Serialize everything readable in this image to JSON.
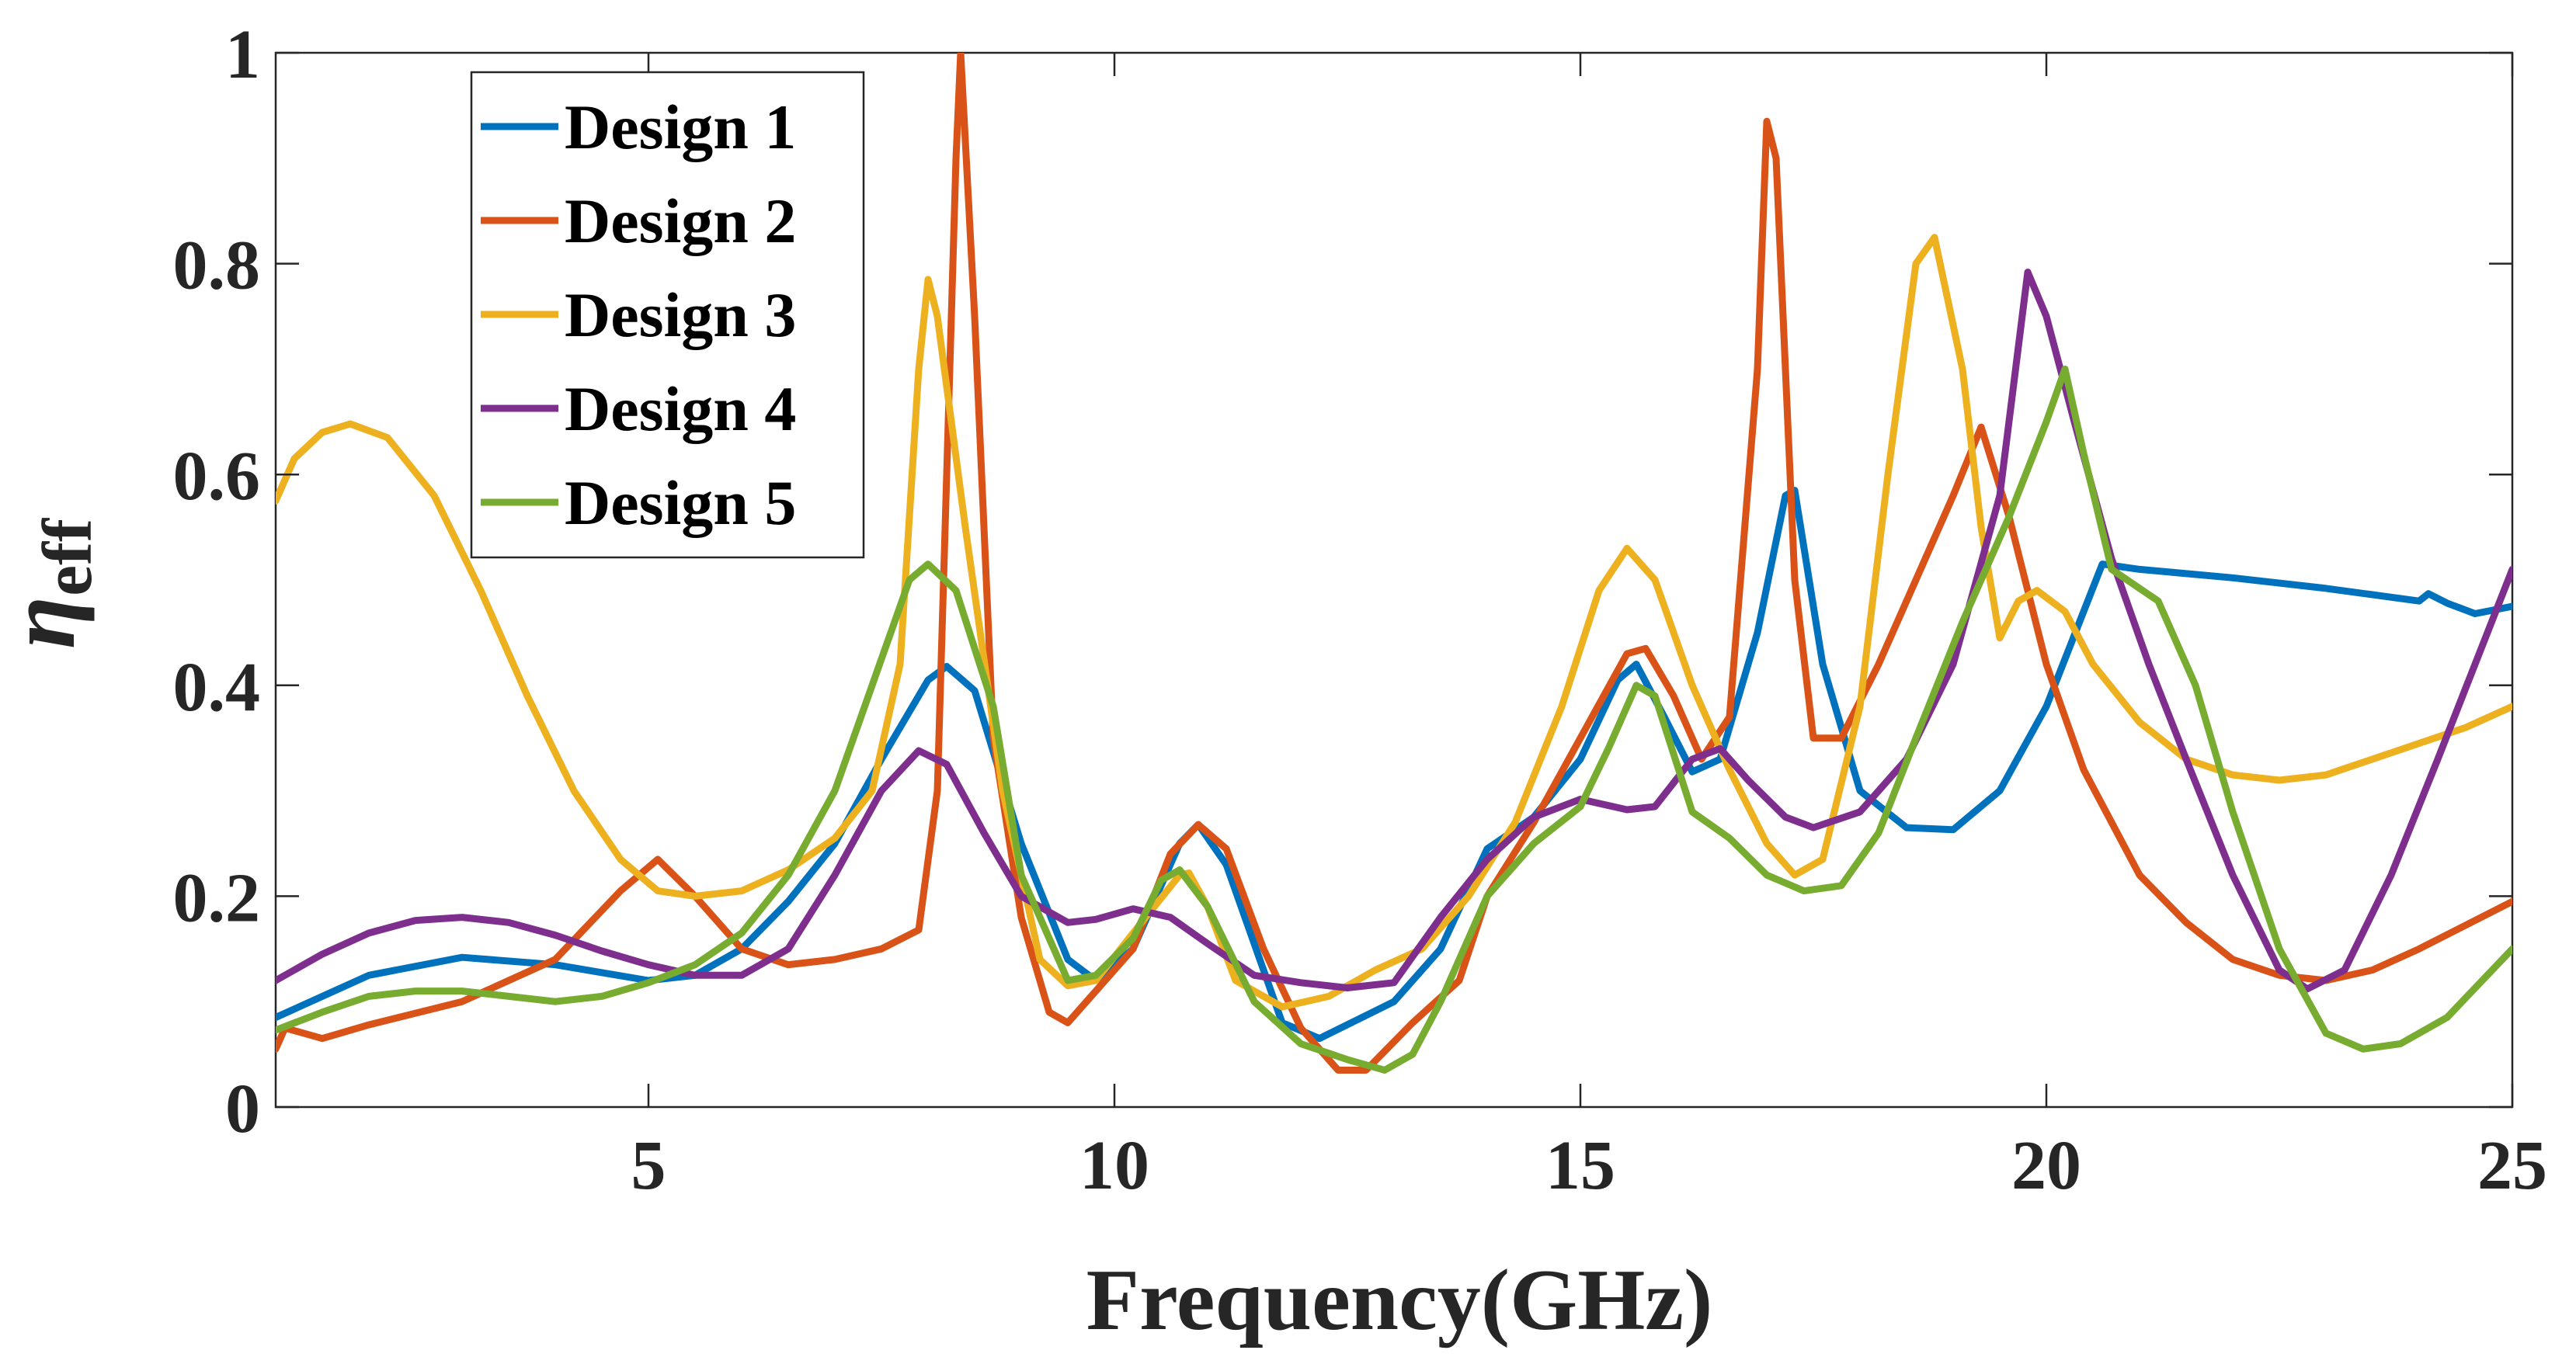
{
  "chart_data": {
    "type": "line",
    "title": "",
    "xlabel": "Frequency(GHz)",
    "ylabel": "η",
    "ylabel_subscript": "eff",
    "xlim": [
      1,
      25
    ],
    "ylim": [
      0,
      1
    ],
    "xticks": [
      5,
      10,
      15,
      20,
      25
    ],
    "xtick_labels": [
      "5",
      "10",
      "15",
      "20",
      "25"
    ],
    "yticks": [
      0,
      0.2,
      0.4,
      0.6,
      0.8,
      1
    ],
    "ytick_labels": [
      "0",
      "0.2",
      "0.4",
      "0.6",
      "0.8",
      "1"
    ],
    "grid": false,
    "legend_position": "top-left",
    "series": [
      {
        "name": "Design 1",
        "color": "#0072BD",
        "points": [
          [
            1,
            0.085
          ],
          [
            2,
            0.125
          ],
          [
            3,
            0.142
          ],
          [
            4,
            0.135
          ],
          [
            5,
            0.12
          ],
          [
            5.5,
            0.125
          ],
          [
            6,
            0.15
          ],
          [
            6.5,
            0.195
          ],
          [
            7,
            0.25
          ],
          [
            7.5,
            0.33
          ],
          [
            8,
            0.405
          ],
          [
            8.2,
            0.418
          ],
          [
            8.5,
            0.395
          ],
          [
            9,
            0.25
          ],
          [
            9.5,
            0.14
          ],
          [
            9.8,
            0.12
          ],
          [
            10.2,
            0.15
          ],
          [
            10.7,
            0.25
          ],
          [
            10.9,
            0.268
          ],
          [
            11.2,
            0.23
          ],
          [
            11.8,
            0.08
          ],
          [
            12.2,
            0.065
          ],
          [
            13,
            0.1
          ],
          [
            13.5,
            0.15
          ],
          [
            14,
            0.245
          ],
          [
            14.5,
            0.275
          ],
          [
            15,
            0.33
          ],
          [
            15.4,
            0.405
          ],
          [
            15.6,
            0.42
          ],
          [
            15.9,
            0.37
          ],
          [
            16.2,
            0.318
          ],
          [
            16.5,
            0.33
          ],
          [
            16.9,
            0.45
          ],
          [
            17.2,
            0.58
          ],
          [
            17.3,
            0.585
          ],
          [
            17.6,
            0.42
          ],
          [
            18,
            0.3
          ],
          [
            18.5,
            0.265
          ],
          [
            19,
            0.263
          ],
          [
            19.5,
            0.3
          ],
          [
            20,
            0.38
          ],
          [
            20.4,
            0.47
          ],
          [
            20.6,
            0.515
          ],
          [
            21,
            0.51
          ],
          [
            22,
            0.502
          ],
          [
            23,
            0.492
          ],
          [
            24,
            0.48
          ],
          [
            24.1,
            0.487
          ],
          [
            24.3,
            0.478
          ],
          [
            24.6,
            0.468
          ],
          [
            25,
            0.475
          ]
        ]
      },
      {
        "name": "Design 2",
        "color": "#D95319",
        "points": [
          [
            1,
            0.055
          ],
          [
            1.1,
            0.075
          ],
          [
            1.5,
            0.065
          ],
          [
            2,
            0.078
          ],
          [
            3,
            0.1
          ],
          [
            4,
            0.14
          ],
          [
            4.7,
            0.205
          ],
          [
            5.1,
            0.235
          ],
          [
            5.5,
            0.2
          ],
          [
            6,
            0.15
          ],
          [
            6.5,
            0.135
          ],
          [
            7,
            0.14
          ],
          [
            7.5,
            0.15
          ],
          [
            7.9,
            0.168
          ],
          [
            8.1,
            0.3
          ],
          [
            8.2,
            0.6
          ],
          [
            8.3,
            0.9
          ],
          [
            8.35,
            1.0
          ],
          [
            8.5,
            0.75
          ],
          [
            8.7,
            0.35
          ],
          [
            9,
            0.18
          ],
          [
            9.3,
            0.09
          ],
          [
            9.5,
            0.08
          ],
          [
            9.8,
            0.11
          ],
          [
            10.2,
            0.15
          ],
          [
            10.6,
            0.24
          ],
          [
            10.9,
            0.268
          ],
          [
            11.2,
            0.245
          ],
          [
            11.6,
            0.15
          ],
          [
            12,
            0.075
          ],
          [
            12.4,
            0.035
          ],
          [
            12.7,
            0.035
          ],
          [
            13.2,
            0.08
          ],
          [
            13.7,
            0.12
          ],
          [
            14,
            0.2
          ],
          [
            14.5,
            0.27
          ],
          [
            15,
            0.35
          ],
          [
            15.5,
            0.43
          ],
          [
            15.7,
            0.435
          ],
          [
            16,
            0.39
          ],
          [
            16.3,
            0.33
          ],
          [
            16.6,
            0.37
          ],
          [
            16.9,
            0.7
          ],
          [
            17.0,
            0.935
          ],
          [
            17.1,
            0.9
          ],
          [
            17.3,
            0.5
          ],
          [
            17.5,
            0.35
          ],
          [
            17.8,
            0.35
          ],
          [
            18.2,
            0.42
          ],
          [
            18.6,
            0.5
          ],
          [
            19,
            0.58
          ],
          [
            19.3,
            0.645
          ],
          [
            19.6,
            0.56
          ],
          [
            20,
            0.42
          ],
          [
            20.4,
            0.32
          ],
          [
            21,
            0.22
          ],
          [
            21.5,
            0.175
          ],
          [
            22,
            0.14
          ],
          [
            22.5,
            0.125
          ],
          [
            23,
            0.12
          ],
          [
            23.5,
            0.13
          ],
          [
            24,
            0.15
          ],
          [
            25,
            0.195
          ]
        ]
      },
      {
        "name": "Design 3",
        "color": "#EDB120",
        "points": [
          [
            1,
            0.575
          ],
          [
            1.2,
            0.615
          ],
          [
            1.5,
            0.64
          ],
          [
            1.8,
            0.648
          ],
          [
            2.2,
            0.635
          ],
          [
            2.7,
            0.58
          ],
          [
            3.2,
            0.49
          ],
          [
            3.7,
            0.39
          ],
          [
            4.2,
            0.3
          ],
          [
            4.7,
            0.235
          ],
          [
            5.1,
            0.205
          ],
          [
            5.5,
            0.2
          ],
          [
            6,
            0.205
          ],
          [
            6.5,
            0.225
          ],
          [
            7,
            0.255
          ],
          [
            7.4,
            0.3
          ],
          [
            7.7,
            0.42
          ],
          [
            7.9,
            0.7
          ],
          [
            8,
            0.785
          ],
          [
            8.1,
            0.75
          ],
          [
            8.4,
            0.55
          ],
          [
            8.8,
            0.3
          ],
          [
            9.2,
            0.14
          ],
          [
            9.5,
            0.115
          ],
          [
            9.8,
            0.12
          ],
          [
            10.2,
            0.165
          ],
          [
            10.7,
            0.22
          ],
          [
            10.8,
            0.222
          ],
          [
            11,
            0.19
          ],
          [
            11.3,
            0.12
          ],
          [
            11.8,
            0.095
          ],
          [
            12.3,
            0.105
          ],
          [
            12.8,
            0.13
          ],
          [
            13.3,
            0.15
          ],
          [
            13.8,
            0.2
          ],
          [
            14.3,
            0.27
          ],
          [
            14.8,
            0.38
          ],
          [
            15.2,
            0.49
          ],
          [
            15.5,
            0.53
          ],
          [
            15.8,
            0.5
          ],
          [
            16.2,
            0.4
          ],
          [
            16.6,
            0.32
          ],
          [
            17,
            0.25
          ],
          [
            17.3,
            0.22
          ],
          [
            17.6,
            0.235
          ],
          [
            18,
            0.38
          ],
          [
            18.3,
            0.6
          ],
          [
            18.6,
            0.8
          ],
          [
            18.8,
            0.825
          ],
          [
            19.1,
            0.7
          ],
          [
            19.3,
            0.55
          ],
          [
            19.5,
            0.445
          ],
          [
            19.7,
            0.48
          ],
          [
            19.9,
            0.49
          ],
          [
            20.2,
            0.47
          ],
          [
            20.5,
            0.42
          ],
          [
            21,
            0.365
          ],
          [
            21.5,
            0.33
          ],
          [
            22,
            0.315
          ],
          [
            22.5,
            0.31
          ],
          [
            23,
            0.315
          ],
          [
            23.5,
            0.33
          ],
          [
            24,
            0.345
          ],
          [
            24.5,
            0.36
          ],
          [
            25,
            0.38
          ]
        ]
      },
      {
        "name": "Design 4",
        "color": "#7E2F8E",
        "points": [
          [
            1,
            0.12
          ],
          [
            1.5,
            0.145
          ],
          [
            2,
            0.165
          ],
          [
            2.5,
            0.177
          ],
          [
            3,
            0.18
          ],
          [
            3.5,
            0.175
          ],
          [
            4,
            0.163
          ],
          [
            4.5,
            0.148
          ],
          [
            5,
            0.135
          ],
          [
            5.5,
            0.125
          ],
          [
            6,
            0.125
          ],
          [
            6.5,
            0.15
          ],
          [
            7,
            0.22
          ],
          [
            7.5,
            0.3
          ],
          [
            7.9,
            0.338
          ],
          [
            8.2,
            0.325
          ],
          [
            8.6,
            0.26
          ],
          [
            9,
            0.2
          ],
          [
            9.5,
            0.175
          ],
          [
            9.8,
            0.178
          ],
          [
            10.2,
            0.188
          ],
          [
            10.6,
            0.18
          ],
          [
            11,
            0.155
          ],
          [
            11.5,
            0.125
          ],
          [
            12,
            0.118
          ],
          [
            12.5,
            0.113
          ],
          [
            13,
            0.118
          ],
          [
            13.5,
            0.18
          ],
          [
            14,
            0.235
          ],
          [
            14.5,
            0.275
          ],
          [
            15,
            0.292
          ],
          [
            15.5,
            0.282
          ],
          [
            15.8,
            0.285
          ],
          [
            16.2,
            0.33
          ],
          [
            16.5,
            0.34
          ],
          [
            16.8,
            0.31
          ],
          [
            17.2,
            0.275
          ],
          [
            17.5,
            0.265
          ],
          [
            18,
            0.28
          ],
          [
            18.5,
            0.33
          ],
          [
            19,
            0.42
          ],
          [
            19.5,
            0.58
          ],
          [
            19.8,
            0.792
          ],
          [
            20,
            0.75
          ],
          [
            20.3,
            0.65
          ],
          [
            20.7,
            0.52
          ],
          [
            21.1,
            0.42
          ],
          [
            21.5,
            0.33
          ],
          [
            22,
            0.22
          ],
          [
            22.5,
            0.13
          ],
          [
            22.8,
            0.112
          ],
          [
            23.2,
            0.13
          ],
          [
            23.7,
            0.22
          ],
          [
            24.2,
            0.33
          ],
          [
            24.6,
            0.42
          ],
          [
            25,
            0.51
          ]
        ]
      },
      {
        "name": "Design 5",
        "color": "#77AC30",
        "points": [
          [
            1,
            0.073
          ],
          [
            1.5,
            0.09
          ],
          [
            2,
            0.105
          ],
          [
            2.5,
            0.11
          ],
          [
            3,
            0.11
          ],
          [
            3.5,
            0.105
          ],
          [
            4,
            0.1
          ],
          [
            4.5,
            0.105
          ],
          [
            5,
            0.118
          ],
          [
            5.5,
            0.135
          ],
          [
            6,
            0.165
          ],
          [
            6.5,
            0.22
          ],
          [
            7,
            0.3
          ],
          [
            7.4,
            0.4
          ],
          [
            7.8,
            0.5
          ],
          [
            8,
            0.515
          ],
          [
            8.3,
            0.49
          ],
          [
            8.7,
            0.38
          ],
          [
            9,
            0.22
          ],
          [
            9.5,
            0.12
          ],
          [
            9.8,
            0.125
          ],
          [
            10.2,
            0.16
          ],
          [
            10.5,
            0.215
          ],
          [
            10.7,
            0.225
          ],
          [
            11,
            0.19
          ],
          [
            11.5,
            0.1
          ],
          [
            12,
            0.06
          ],
          [
            12.5,
            0.045
          ],
          [
            12.9,
            0.035
          ],
          [
            13.2,
            0.05
          ],
          [
            13.5,
            0.1
          ],
          [
            14,
            0.2
          ],
          [
            14.5,
            0.25
          ],
          [
            15,
            0.285
          ],
          [
            15.3,
            0.34
          ],
          [
            15.6,
            0.4
          ],
          [
            15.8,
            0.39
          ],
          [
            16.2,
            0.28
          ],
          [
            16.6,
            0.255
          ],
          [
            17,
            0.22
          ],
          [
            17.4,
            0.205
          ],
          [
            17.8,
            0.21
          ],
          [
            18.2,
            0.26
          ],
          [
            18.6,
            0.35
          ],
          [
            19.1,
            0.46
          ],
          [
            19.6,
            0.56
          ],
          [
            20,
            0.65
          ],
          [
            20.2,
            0.7
          ],
          [
            20.4,
            0.62
          ],
          [
            20.7,
            0.51
          ],
          [
            21.2,
            0.48
          ],
          [
            21.6,
            0.4
          ],
          [
            22,
            0.28
          ],
          [
            22.5,
            0.15
          ],
          [
            23,
            0.07
          ],
          [
            23.4,
            0.055
          ],
          [
            23.8,
            0.06
          ],
          [
            24.3,
            0.085
          ],
          [
            25,
            0.15
          ]
        ]
      }
    ]
  }
}
